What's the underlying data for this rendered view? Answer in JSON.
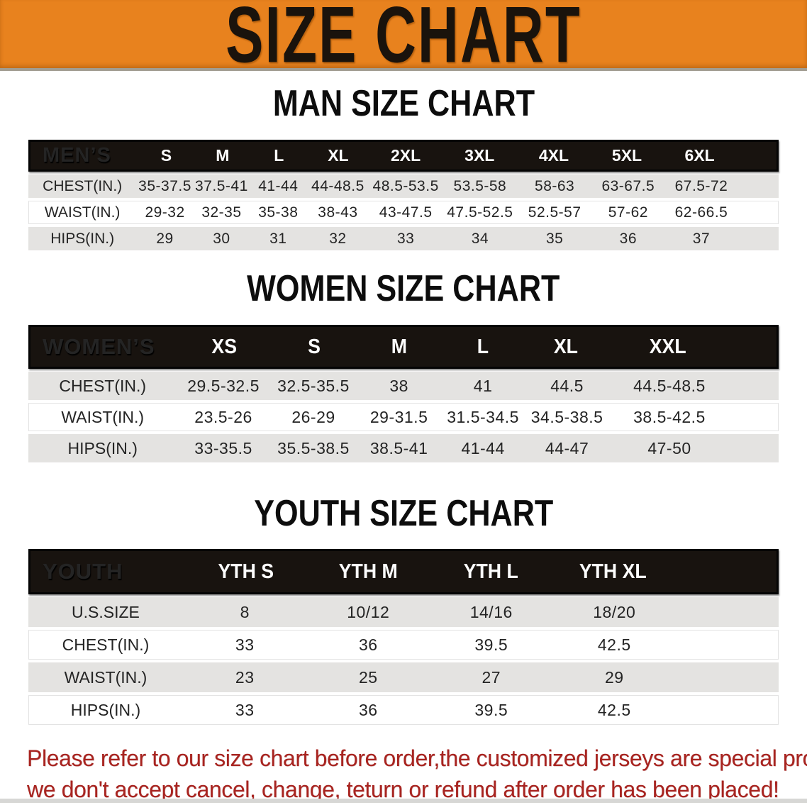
{
  "banner": {
    "title": "SIZE CHART"
  },
  "colors": {
    "banner_bg": "#e8821e",
    "header_bar": "#18130f",
    "row_stripe": "#e4e3e1",
    "disclaimer_text": "#a82420"
  },
  "sections": [
    {
      "id": "men",
      "heading": "MAN SIZE CHART",
      "table": {
        "label": "MEN’S",
        "columns": [
          "S",
          "M",
          "L",
          "XL",
          "2XL",
          "3XL",
          "4XL",
          "5XL",
          "6XL"
        ],
        "rows": [
          {
            "label": "CHEST(IN.)",
            "values": [
              "35-37.5",
              "37.5-41",
              "41-44",
              "44-48.5",
              "48.5-53.5",
              "53.5-58",
              "58-63",
              "63-67.5",
              "67.5-72"
            ]
          },
          {
            "label": "WAIST(IN.)",
            "values": [
              "29-32",
              "32-35",
              "35-38",
              "38-43",
              "43-47.5",
              "47.5-52.5",
              "52.5-57",
              "57-62",
              "62-66.5"
            ]
          },
          {
            "label": "HIPS(IN.)",
            "values": [
              "29",
              "30",
              "31",
              "32",
              "33",
              "34",
              "35",
              "36",
              "37"
            ]
          }
        ]
      }
    },
    {
      "id": "women",
      "heading": "WOMEN SIZE CHART",
      "table": {
        "label": "WOMEN’S",
        "columns": [
          "XS",
          "S",
          "M",
          "L",
          "XL",
          "XXL"
        ],
        "rows": [
          {
            "label": "CHEST(IN.)",
            "values": [
              "29.5-32.5",
              "32.5-35.5",
              "38",
              "41",
              "44.5",
              "44.5-48.5"
            ]
          },
          {
            "label": "WAIST(IN.)",
            "values": [
              "23.5-26",
              "26-29",
              "29-31.5",
              "31.5-34.5",
              "34.5-38.5",
              "38.5-42.5"
            ]
          },
          {
            "label": "HIPS(IN.)",
            "values": [
              "33-35.5",
              "35.5-38.5",
              "38.5-41",
              "41-44",
              "44-47",
              "47-50"
            ]
          }
        ]
      }
    },
    {
      "id": "youth",
      "heading": "YOUTH SIZE CHART",
      "table": {
        "label": "YOUTH",
        "columns": [
          "YTH S",
          "YTH M",
          "YTH L",
          "YTH XL"
        ],
        "rows": [
          {
            "label": "U.S.SIZE",
            "values": [
              "8",
              "10/12",
              "14/16",
              "18/20"
            ]
          },
          {
            "label": "CHEST(IN.)",
            "values": [
              "33",
              "36",
              "39.5",
              "42.5"
            ]
          },
          {
            "label": "WAIST(IN.)",
            "values": [
              "23",
              "25",
              "27",
              "29"
            ]
          },
          {
            "label": "HIPS(IN.)",
            "values": [
              "33",
              "36",
              "39.5",
              "42.5"
            ]
          }
        ]
      }
    }
  ],
  "disclaimer": {
    "lines": [
      "Please refer to our size chart before order,the customized jerseys are special products,",
      "we don't accept cancel, change, teturn or refund after order has been placed!"
    ]
  }
}
